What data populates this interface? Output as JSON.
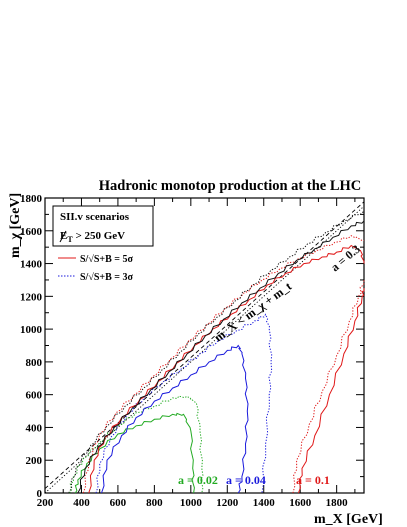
{
  "chart_data": {
    "type": "line",
    "title": "Hadronic monotop production at the LHC",
    "xlabel": "m_X [GeV]",
    "ylabel": "m_χ [GeV]",
    "xlim": [
      200,
      1950
    ],
    "ylim": [
      0,
      1800
    ],
    "xticks": [
      "200",
      "300",
      "400",
      "500",
      "600",
      "700",
      "800",
      "900",
      "1000",
      "1100",
      "1200",
      "1300",
      "1400",
      "1500",
      "1600",
      "1700",
      "1800",
      "1900"
    ],
    "xtick_labels": [
      "200",
      "400",
      "600",
      "800",
      "1000",
      "1200",
      "1400",
      "1600",
      "1800"
    ],
    "ytick_labels": [
      "0",
      "200",
      "400",
      "600",
      "800",
      "1000",
      "1200",
      "1400",
      "1600",
      "1800"
    ],
    "yticks": [
      0,
      200,
      400,
      600,
      800,
      1000,
      1200,
      1400,
      1600,
      1800
    ],
    "grid": false,
    "info_box": {
      "line1": "SII.v scenarios",
      "line2": "̸E_T > 250 GeV",
      "line2_main": "E",
      "line2_sub": "T",
      "line2_rest": " > 250 GeV"
    },
    "legend": {
      "placement": "top-left",
      "items": [
        {
          "label": "S/√S+B = 5σ",
          "style": "solid"
        },
        {
          "label": "S/√S+B = 3σ",
          "style": "dotted"
        }
      ]
    },
    "diagonal_label": "m_X < m_χ + m_t",
    "diagonal_label_main": "m",
    "series": [
      {
        "name": "a = 0.02",
        "color": "#22aa22",
        "five_sigma": [
          [
            365,
            0
          ],
          [
            380,
            80
          ],
          [
            430,
            180
          ],
          [
            500,
            270
          ],
          [
            600,
            360
          ],
          [
            700,
            410
          ],
          [
            800,
            450
          ],
          [
            900,
            480
          ],
          [
            960,
            480
          ],
          [
            1000,
            380
          ],
          [
            1010,
            150
          ],
          [
            1015,
            0
          ]
        ],
        "three_sigma": [
          [
            335,
            0
          ],
          [
            355,
            100
          ],
          [
            410,
            210
          ],
          [
            500,
            310
          ],
          [
            600,
            410
          ],
          [
            700,
            490
          ],
          [
            800,
            530
          ],
          [
            900,
            580
          ],
          [
            980,
            590
          ],
          [
            1030,
            550
          ],
          [
            1050,
            380
          ],
          [
            1060,
            150
          ],
          [
            1060,
            0
          ]
        ]
      },
      {
        "name": "a = 0.04",
        "color": "#1a1adc",
        "five_sigma": [
          [
            510,
            0
          ],
          [
            540,
            200
          ],
          [
            620,
            350
          ],
          [
            700,
            460
          ],
          [
            800,
            560
          ],
          [
            900,
            640
          ],
          [
            1000,
            720
          ],
          [
            1100,
            800
          ],
          [
            1200,
            870
          ],
          [
            1260,
            900
          ],
          [
            1280,
            850
          ],
          [
            1300,
            700
          ],
          [
            1310,
            500
          ],
          [
            1300,
            300
          ],
          [
            1280,
            100
          ],
          [
            1260,
            0
          ]
        ],
        "three_sigma": [
          [
            480,
            0
          ],
          [
            500,
            180
          ],
          [
            560,
            340
          ],
          [
            650,
            480
          ],
          [
            750,
            590
          ],
          [
            850,
            680
          ],
          [
            950,
            760
          ],
          [
            1050,
            850
          ],
          [
            1150,
            930
          ],
          [
            1250,
            990
          ],
          [
            1350,
            1050
          ],
          [
            1410,
            1090
          ],
          [
            1430,
            1000
          ],
          [
            1440,
            800
          ],
          [
            1430,
            600
          ],
          [
            1410,
            300
          ],
          [
            1390,
            0
          ]
        ]
      },
      {
        "name": "a = 0.1",
        "color": "#e01818",
        "five_sigma": [
          [
            440,
            0
          ],
          [
            470,
            200
          ],
          [
            530,
            340
          ],
          [
            620,
            460
          ],
          [
            720,
            570
          ],
          [
            820,
            680
          ],
          [
            920,
            790
          ],
          [
            1020,
            900
          ],
          [
            1120,
            1000
          ],
          [
            1220,
            1090
          ],
          [
            1320,
            1180
          ],
          [
            1420,
            1270
          ],
          [
            1520,
            1340
          ],
          [
            1620,
            1400
          ],
          [
            1720,
            1440
          ],
          [
            1800,
            1470
          ],
          [
            1880,
            1510
          ],
          [
            1930,
            1480
          ],
          [
            1950,
            1400
          ]
        ],
        "five_sigma_b": [
          [
            1590,
            0
          ],
          [
            1610,
            150
          ],
          [
            1680,
            350
          ],
          [
            1760,
            600
          ],
          [
            1840,
            850
          ],
          [
            1900,
            1050
          ],
          [
            1940,
            1200
          ],
          [
            1950,
            1250
          ]
        ],
        "three_sigma": [
          [
            410,
            0
          ],
          [
            440,
            200
          ],
          [
            500,
            360
          ],
          [
            590,
            490
          ],
          [
            690,
            600
          ],
          [
            790,
            710
          ],
          [
            890,
            820
          ],
          [
            990,
            930
          ],
          [
            1090,
            1030
          ],
          [
            1190,
            1130
          ],
          [
            1290,
            1220
          ],
          [
            1390,
            1300
          ],
          [
            1490,
            1370
          ],
          [
            1590,
            1430
          ],
          [
            1690,
            1480
          ],
          [
            1790,
            1530
          ],
          [
            1880,
            1570
          ],
          [
            1950,
            1540
          ]
        ],
        "three_sigma_b": [
          [
            1560,
            0
          ],
          [
            1580,
            200
          ],
          [
            1650,
            420
          ],
          [
            1720,
            620
          ],
          [
            1800,
            840
          ],
          [
            1870,
            1050
          ],
          [
            1920,
            1200
          ],
          [
            1950,
            1300
          ]
        ]
      },
      {
        "name": "a = 0.3",
        "color": "#111111",
        "five_sigma": [
          [
            380,
            0
          ],
          [
            420,
            150
          ],
          [
            490,
            280
          ],
          [
            580,
            400
          ],
          [
            680,
            520
          ],
          [
            780,
            630
          ],
          [
            880,
            740
          ],
          [
            980,
            850
          ],
          [
            1080,
            960
          ],
          [
            1180,
            1060
          ],
          [
            1280,
            1160
          ],
          [
            1380,
            1250
          ],
          [
            1480,
            1340
          ],
          [
            1580,
            1420
          ],
          [
            1680,
            1490
          ],
          [
            1780,
            1560
          ],
          [
            1880,
            1630
          ],
          [
            1950,
            1660
          ]
        ],
        "three_sigma": [
          [
            330,
            0
          ],
          [
            370,
            150
          ],
          [
            450,
            290
          ],
          [
            540,
            410
          ],
          [
            640,
            530
          ],
          [
            740,
            640
          ],
          [
            840,
            750
          ],
          [
            940,
            860
          ],
          [
            1040,
            970
          ],
          [
            1140,
            1070
          ],
          [
            1240,
            1170
          ],
          [
            1340,
            1270
          ],
          [
            1440,
            1360
          ],
          [
            1540,
            1440
          ],
          [
            1640,
            1520
          ],
          [
            1740,
            1590
          ],
          [
            1840,
            1660
          ],
          [
            1950,
            1720
          ]
        ]
      }
    ],
    "diagonals": [
      {
        "style": "dashed",
        "points": [
          [
            200,
            27
          ],
          [
            1950,
            1777
          ]
        ]
      },
      {
        "style": "dotted",
        "points": [
          [
            200,
            0
          ],
          [
            1950,
            1750
          ]
        ]
      }
    ],
    "curve_labels": [
      {
        "text": "a = 0.02",
        "color": "#22aa22"
      },
      {
        "text": "a = 0.04",
        "color": "#1a1adc"
      },
      {
        "text": "a = 0.1",
        "color": "#e01818"
      },
      {
        "text": "a = 0.3",
        "color": "#111111"
      }
    ]
  }
}
